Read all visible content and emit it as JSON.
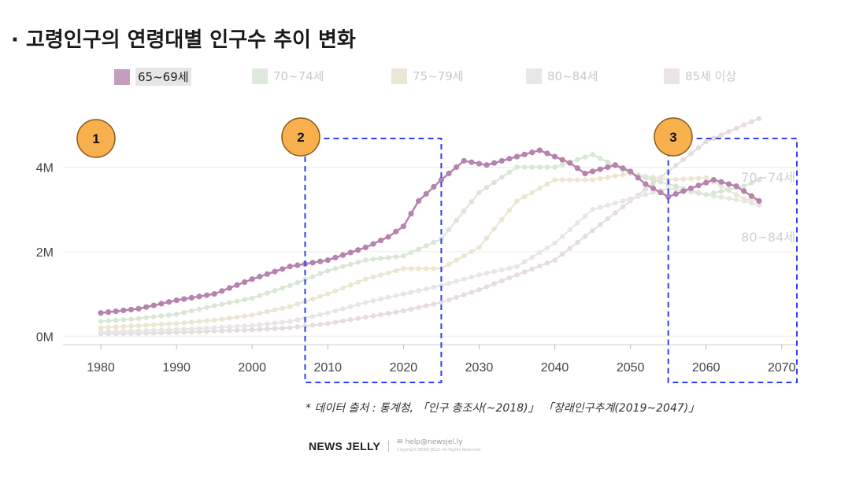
{
  "title": "· 고령인구의 연령대별 인구수 추이 변화",
  "legend": [
    {
      "label": "65~69세",
      "color": "#c39ebf",
      "active": true
    },
    {
      "label": "70~74세",
      "color": "#dfe8dd",
      "active": false
    },
    {
      "label": "75~79세",
      "color": "#ece6d4",
      "active": false
    },
    {
      "label": "80~84세",
      "color": "#e9e6e6",
      "active": false
    },
    {
      "label": "85세 이상",
      "color": "#ebe4e4",
      "active": false
    }
  ],
  "source": "* 데이터 출처 :  통계청, 「인구 총조사(~2018)」 「장래인구추계(2019~2047)」",
  "footer": {
    "brand": "NEWS JELLY",
    "contact": "help@newsjel.ly",
    "fine": "Copyright NEWS JELLY. All Rights Reserved."
  },
  "annotations": [
    {
      "label": "1"
    },
    {
      "label": "2",
      "x_range": [
        2007,
        2025
      ]
    },
    {
      "label": "3",
      "x_range": [
        2055,
        2072
      ]
    }
  ],
  "chart_data": {
    "type": "line",
    "title": "고령인구의 연령대별 인구수 추이 변화",
    "xlabel": "",
    "ylabel": "",
    "xlim": [
      1975,
      2072
    ],
    "ylim": [
      -0.2,
      5.2
    ],
    "xticks": [
      1980,
      1990,
      2000,
      2010,
      2020,
      2030,
      2040,
      2050,
      2060,
      2070
    ],
    "yticks": [
      {
        "v": 0,
        "label": "0M"
      },
      {
        "v": 2,
        "label": "2M"
      },
      {
        "v": 4,
        "label": "4M"
      }
    ],
    "series_end_labels": [
      "70~74세",
      "80~84세"
    ],
    "series": [
      {
        "name": "85세 이상",
        "color": "#e6dcdc",
        "points": [
          [
            1980,
            0.06
          ],
          [
            1985,
            0.07
          ],
          [
            1990,
            0.09
          ],
          [
            1995,
            0.12
          ],
          [
            2000,
            0.15
          ],
          [
            2005,
            0.2
          ],
          [
            2010,
            0.3
          ],
          [
            2015,
            0.45
          ],
          [
            2020,
            0.6
          ],
          [
            2025,
            0.8
          ],
          [
            2030,
            1.1
          ],
          [
            2035,
            1.45
          ],
          [
            2040,
            1.8
          ],
          [
            2045,
            2.5
          ],
          [
            2050,
            3.2
          ],
          [
            2055,
            3.9
          ],
          [
            2060,
            4.6
          ],
          [
            2065,
            5.0
          ],
          [
            2067,
            5.15
          ]
        ]
      },
      {
        "name": "80~84세",
        "color": "#e8e5e5",
        "points": [
          [
            1980,
            0.1
          ],
          [
            1985,
            0.12
          ],
          [
            1990,
            0.16
          ],
          [
            1995,
            0.2
          ],
          [
            2000,
            0.25
          ],
          [
            2005,
            0.35
          ],
          [
            2010,
            0.55
          ],
          [
            2015,
            0.8
          ],
          [
            2020,
            1.0
          ],
          [
            2025,
            1.2
          ],
          [
            2030,
            1.45
          ],
          [
            2035,
            1.65
          ],
          [
            2040,
            2.2
          ],
          [
            2045,
            3.0
          ],
          [
            2050,
            3.25
          ],
          [
            2055,
            3.5
          ],
          [
            2060,
            3.35
          ],
          [
            2065,
            3.2
          ],
          [
            2067,
            3.1
          ]
        ]
      },
      {
        "name": "75~79세",
        "color": "#ece5d1",
        "points": [
          [
            1980,
            0.2
          ],
          [
            1985,
            0.25
          ],
          [
            1990,
            0.3
          ],
          [
            1995,
            0.38
          ],
          [
            2000,
            0.5
          ],
          [
            2005,
            0.7
          ],
          [
            2010,
            1.0
          ],
          [
            2015,
            1.35
          ],
          [
            2020,
            1.6
          ],
          [
            2025,
            1.6
          ],
          [
            2030,
            2.1
          ],
          [
            2035,
            3.2
          ],
          [
            2040,
            3.7
          ],
          [
            2045,
            3.7
          ],
          [
            2050,
            3.85
          ],
          [
            2055,
            3.7
          ],
          [
            2060,
            3.75
          ],
          [
            2065,
            3.25
          ],
          [
            2067,
            3.2
          ]
        ]
      },
      {
        "name": "70~74세",
        "color": "#d9e6d6",
        "points": [
          [
            1980,
            0.35
          ],
          [
            1985,
            0.42
          ],
          [
            1990,
            0.52
          ],
          [
            1995,
            0.72
          ],
          [
            2000,
            0.9
          ],
          [
            2005,
            1.2
          ],
          [
            2010,
            1.55
          ],
          [
            2015,
            1.8
          ],
          [
            2020,
            1.9
          ],
          [
            2025,
            2.3
          ],
          [
            2030,
            3.4
          ],
          [
            2035,
            4.0
          ],
          [
            2040,
            4.0
          ],
          [
            2045,
            4.3
          ],
          [
            2050,
            3.85
          ],
          [
            2055,
            3.6
          ],
          [
            2060,
            3.35
          ],
          [
            2065,
            3.55
          ],
          [
            2067,
            3.7
          ]
        ]
      },
      {
        "name": "65~69세",
        "color": "#b583ad",
        "points": [
          [
            1980,
            0.55
          ],
          [
            1985,
            0.65
          ],
          [
            1990,
            0.85
          ],
          [
            1995,
            1.0
          ],
          [
            2000,
            1.35
          ],
          [
            2005,
            1.65
          ],
          [
            2010,
            1.8
          ],
          [
            2015,
            2.1
          ],
          [
            2018,
            2.35
          ],
          [
            2020,
            2.6
          ],
          [
            2022,
            3.2
          ],
          [
            2025,
            3.7
          ],
          [
            2028,
            4.15
          ],
          [
            2031,
            4.05
          ],
          [
            2034,
            4.2
          ],
          [
            2038,
            4.4
          ],
          [
            2042,
            4.1
          ],
          [
            2044,
            3.85
          ],
          [
            2048,
            4.05
          ],
          [
            2050,
            3.9
          ],
          [
            2052,
            3.6
          ],
          [
            2055,
            3.3
          ],
          [
            2058,
            3.5
          ],
          [
            2061,
            3.7
          ],
          [
            2064,
            3.55
          ],
          [
            2067,
            3.2
          ]
        ]
      }
    ]
  }
}
